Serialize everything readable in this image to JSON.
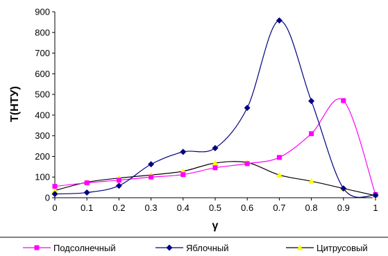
{
  "chart_data": {
    "type": "line",
    "title": "",
    "xlabel": "γ",
    "ylabel": "T(HTУ)",
    "xlim": [
      0,
      1
    ],
    "ylim": [
      0,
      900
    ],
    "xticks": [
      "0",
      "0.1",
      "0.2",
      "0.3",
      "0.4",
      "0.5",
      "0.6",
      "0.7",
      "0.8",
      "0.9",
      "1"
    ],
    "yticks": [
      "0",
      "100",
      "200",
      "300",
      "400",
      "500",
      "600",
      "700",
      "800",
      "900"
    ],
    "x": [
      0,
      0.1,
      0.2,
      0.3,
      0.4,
      0.5,
      0.6,
      0.7,
      0.8,
      0.9,
      1
    ],
    "grid": false,
    "legend": "bottom",
    "series": [
      {
        "name": "Подсолнечный",
        "color": "#ff00ff",
        "marker": "square",
        "values": [
          55,
          72,
          85,
          100,
          112,
          145,
          165,
          195,
          310,
          470,
          15
        ]
      },
      {
        "name": "Яблочный",
        "color": "#000080",
        "marker": "diamond",
        "values": [
          18,
          25,
          58,
          162,
          222,
          240,
          435,
          858,
          468,
          45,
          12
        ]
      },
      {
        "name": "Цитрусовый",
        "color": "#000000",
        "marker_color": "#ffff00",
        "marker": "triangle",
        "values": [
          35,
          75,
          95,
          110,
          128,
          168,
          170,
          110,
          80,
          45,
          10
        ]
      }
    ]
  }
}
